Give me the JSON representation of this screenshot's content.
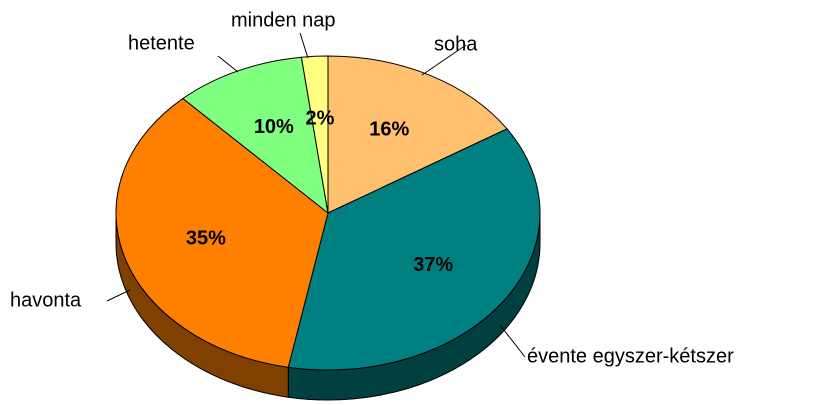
{
  "chart_data": {
    "type": "pie",
    "categories": [
      "soha",
      "évente egyszer-kétszer",
      "havonta",
      "hetente",
      "minden nap"
    ],
    "values": [
      16,
      37,
      35,
      10,
      2
    ],
    "value_labels": [
      "16%",
      "37%",
      "35%",
      "10%",
      "2%"
    ],
    "colors": [
      "#FFC070",
      "#008080",
      "#FF8000",
      "#80FF80",
      "#FFFF80"
    ]
  }
}
